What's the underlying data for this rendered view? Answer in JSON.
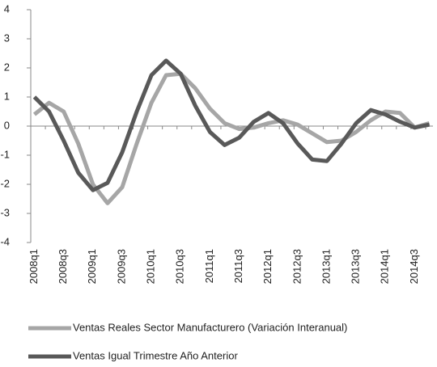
{
  "chart_data": {
    "type": "line",
    "categories": [
      "2008q1",
      null,
      "2008q3",
      null,
      "2009q1",
      null,
      "2009q3",
      null,
      "2010q1",
      null,
      "2010q3",
      null,
      "2011q1",
      null,
      "2011q3",
      null,
      "2012q1",
      null,
      "2012q3",
      null,
      "2013q1",
      null,
      "2013q3",
      null,
      "2014q1",
      null,
      "2014q3",
      null
    ],
    "series": [
      {
        "name": "Ventas Reales Sector Manufacturero (Variación Interanual)",
        "color": "#a6a6a6",
        "values": [
          0.4,
          0.8,
          0.5,
          -0.6,
          -2.0,
          -2.65,
          -2.1,
          -0.6,
          0.8,
          1.75,
          1.8,
          1.3,
          0.6,
          0.1,
          -0.1,
          -0.05,
          0.1,
          0.2,
          0.05,
          -0.25,
          -0.55,
          -0.5,
          -0.2,
          0.2,
          0.5,
          0.45,
          -0.05,
          0.1
        ]
      },
      {
        "name": "Ventas Igual Trimestre Año Anterior",
        "color": "#595959",
        "values": [
          1.0,
          0.5,
          -0.5,
          -1.6,
          -2.2,
          -1.95,
          -0.9,
          0.5,
          1.75,
          2.25,
          1.8,
          0.7,
          -0.2,
          -0.65,
          -0.4,
          0.15,
          0.45,
          0.1,
          -0.6,
          -1.15,
          -1.2,
          -0.6,
          0.1,
          0.55,
          0.4,
          0.15,
          -0.05,
          0.05
        ]
      }
    ],
    "ylim": [
      -4,
      4
    ],
    "yticks": [
      -4,
      -3,
      -2,
      -1,
      0,
      1,
      2,
      3,
      4
    ],
    "grid": false
  }
}
